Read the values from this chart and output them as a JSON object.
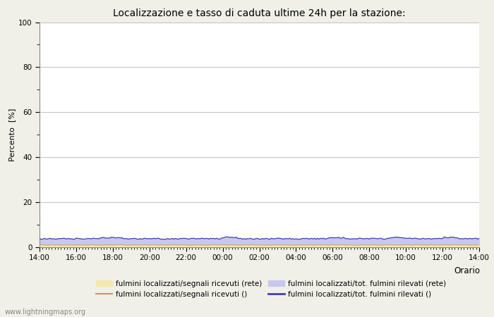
{
  "title": "Localizzazione e tasso di caduta ultime 24h per la stazione:",
  "xlabel": "Orario",
  "ylabel": "Percento  [%]",
  "ylim": [
    0,
    100
  ],
  "yticks": [
    0,
    20,
    40,
    60,
    80,
    100
  ],
  "yticks_minor": [
    10,
    30,
    50,
    70,
    90
  ],
  "x_labels": [
    "14:00",
    "16:00",
    "18:00",
    "20:00",
    "22:00",
    "00:00",
    "02:00",
    "04:00",
    "06:00",
    "08:00",
    "10:00",
    "12:00",
    "14:00"
  ],
  "n_points": 289,
  "fill_color_1": "#f5e8b0",
  "fill_color_2": "#c8c8ee",
  "line_color_1": "#c8a040",
  "line_color_2": "#4040b0",
  "fill_value_1": 1.0,
  "fill_value_2_base": 3.8,
  "watermark": "www.lightningmaps.org",
  "background_color": "#f0f0e8",
  "plot_bg_color": "#ffffff",
  "grid_color": "#c0c0c0",
  "legend_labels": [
    "fulmini localizzati/segnali ricevuti (rete)",
    "fulmini localizzati/segnali ricevuti ()",
    "fulmini localizzati/tot. fulmini rilevati (rete)",
    "fulmini localizzati/tot. fulmini rilevati ()"
  ]
}
